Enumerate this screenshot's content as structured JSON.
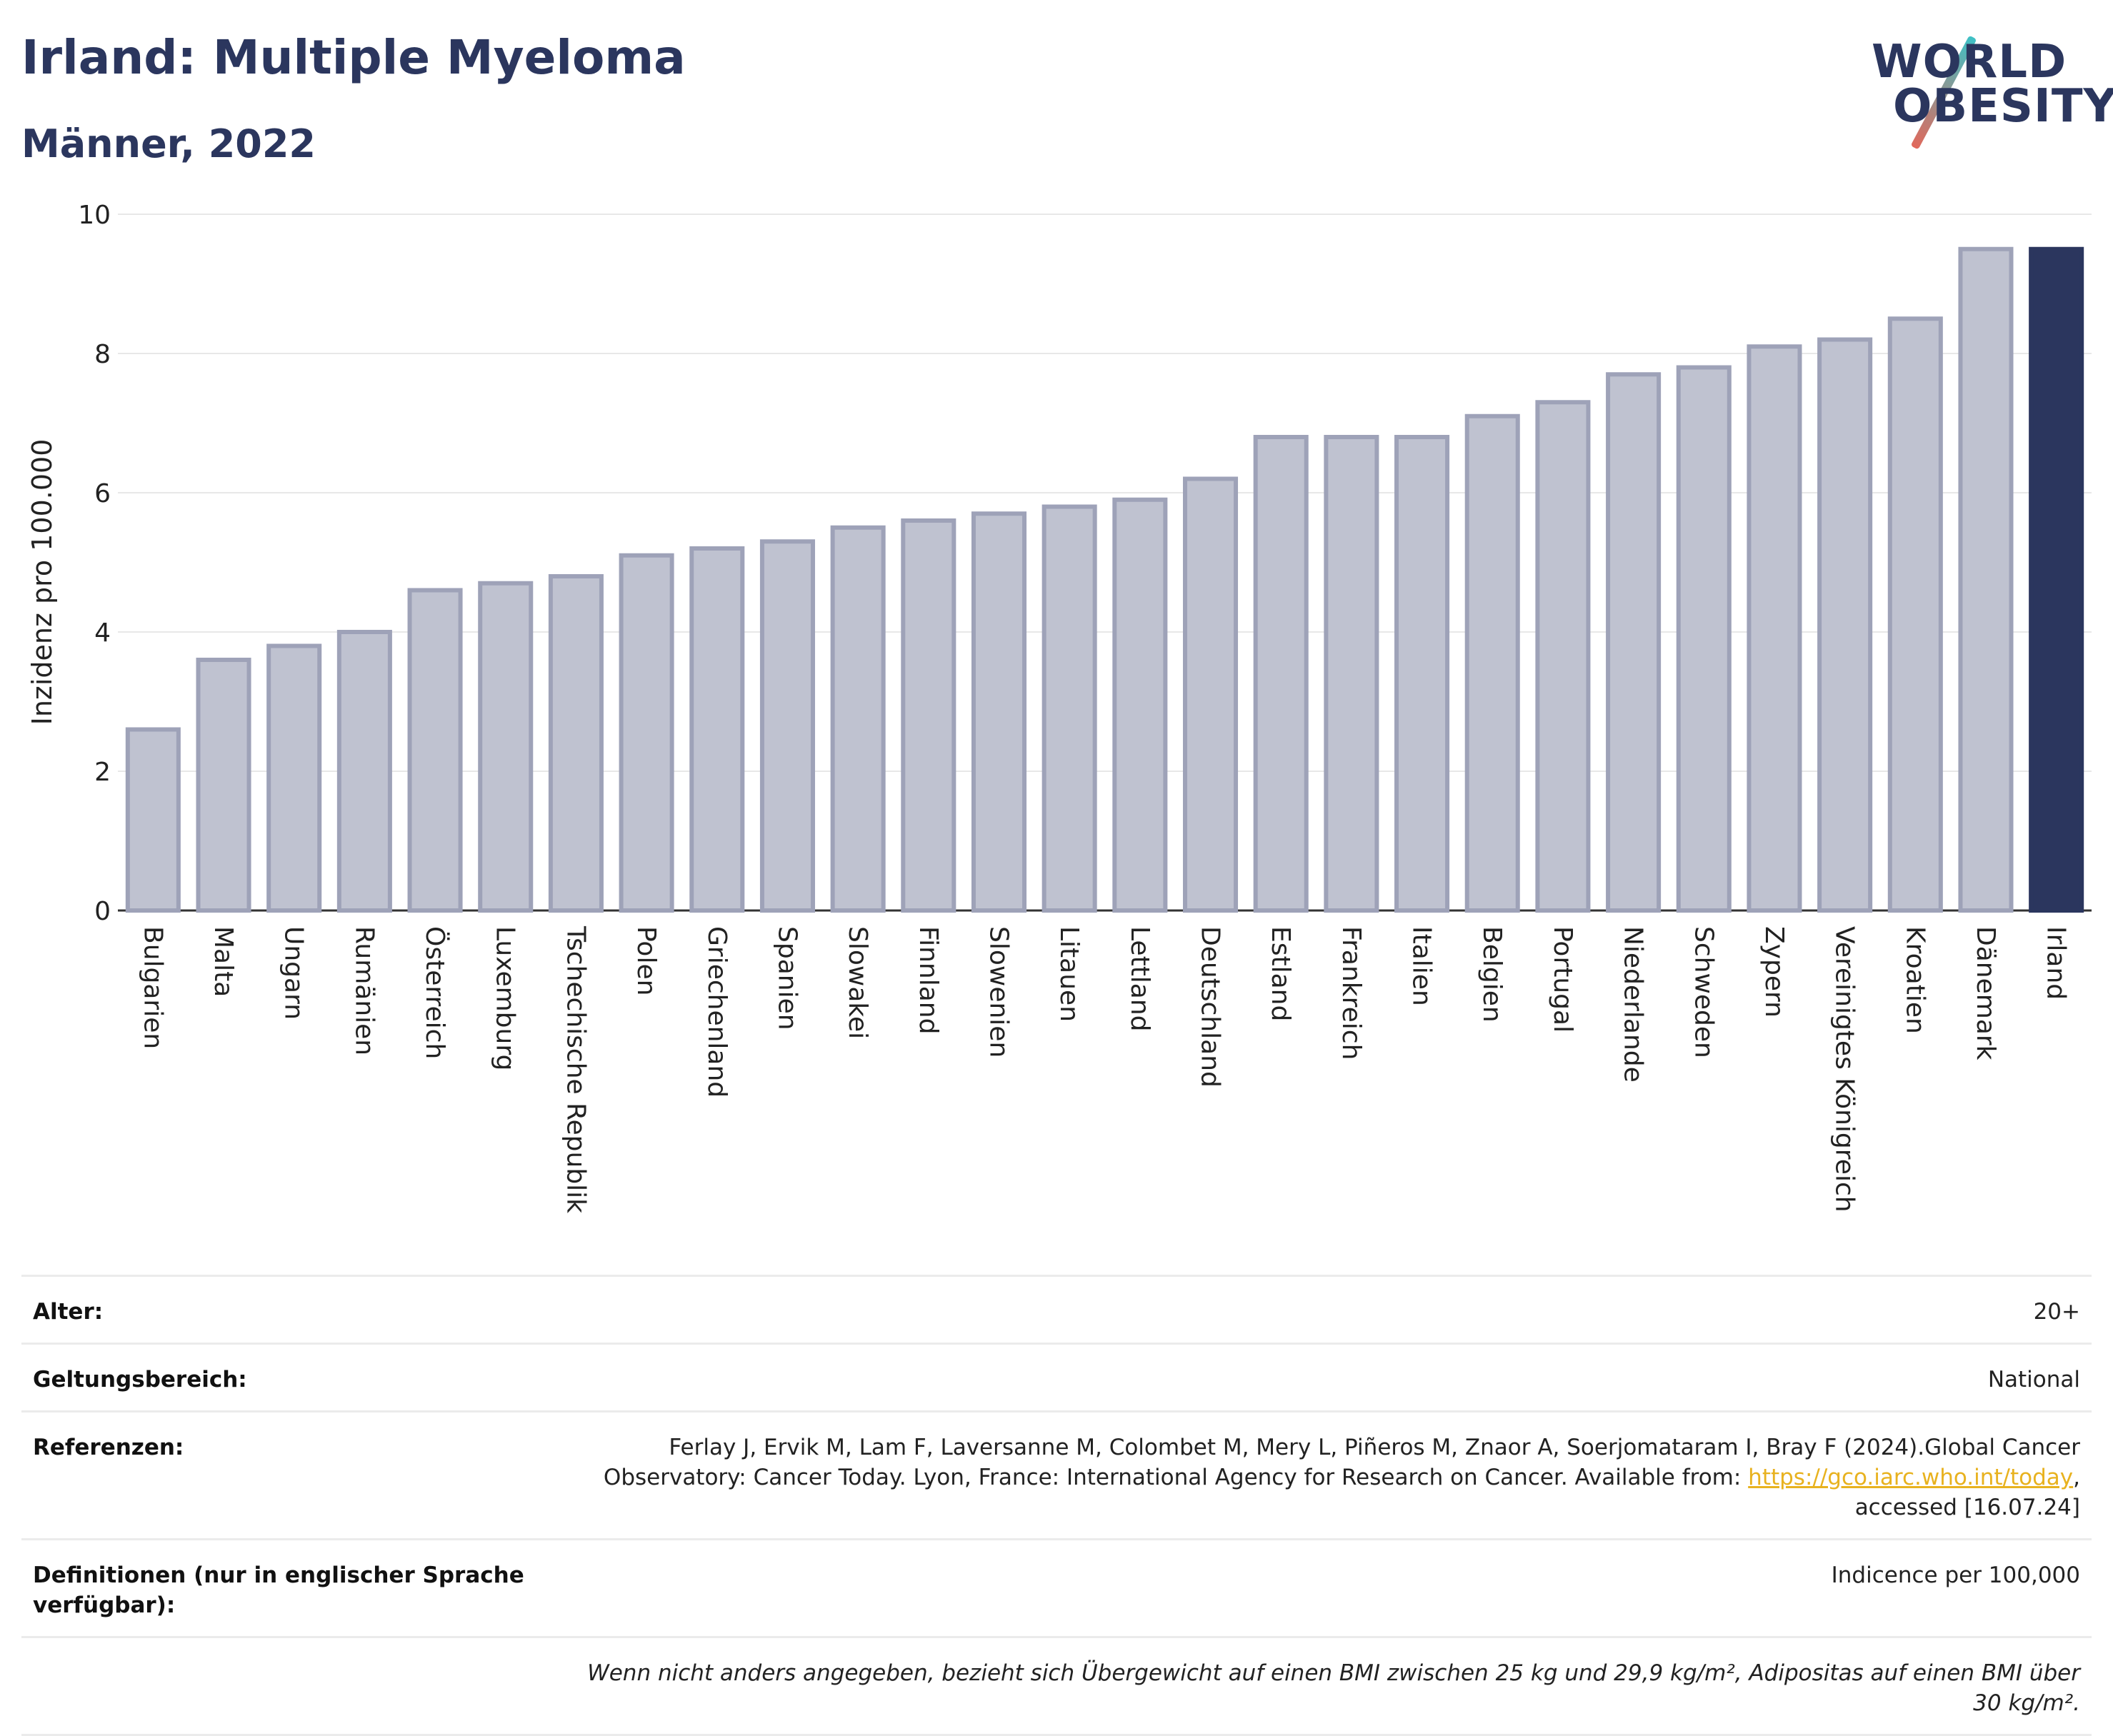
{
  "title": "Irland: Multiple Myeloma",
  "subtitle": "Männer, 2022",
  "logo": {
    "line1": "WORLD",
    "line2": "OBESITY"
  },
  "chart_data": {
    "type": "bar",
    "ylabel": "Inzidenz pro 100.000",
    "xlabel": "",
    "ylim": [
      0,
      10
    ],
    "yticks": [
      0,
      2,
      4,
      6,
      8,
      10
    ],
    "categories": [
      "Bulgarien",
      "Malta",
      "Ungarn",
      "Rumänien",
      "Österreich",
      "Luxemburg",
      "Tschechische Republik",
      "Polen",
      "Griechenland",
      "Spanien",
      "Slowakei",
      "Finnland",
      "Slowenien",
      "Litauen",
      "Lettland",
      "Deutschland",
      "Estland",
      "Frankreich",
      "Italien",
      "Belgien",
      "Portugal",
      "Niederlande",
      "Schweden",
      "Zypern",
      "Vereinigtes Königreich",
      "Kroatien",
      "Dänemark",
      "Irland"
    ],
    "values": [
      2.6,
      3.6,
      3.8,
      4.0,
      4.6,
      4.7,
      4.8,
      5.1,
      5.2,
      5.3,
      5.5,
      5.6,
      5.7,
      5.8,
      5.9,
      6.2,
      6.8,
      6.8,
      6.8,
      7.1,
      7.3,
      7.7,
      7.8,
      8.1,
      8.2,
      8.5,
      9.5,
      9.5
    ],
    "highlight": "Irland",
    "colors": {
      "bar": "#bfc2d0",
      "bar_border": "#9ea2b8",
      "highlight": "#2b365e",
      "grid": "#e8e8e8"
    }
  },
  "info": {
    "age_label": "Alter:",
    "age_value": "20+",
    "scope_label": "Geltungsbereich:",
    "scope_value": "National",
    "ref_label": "Referenzen:",
    "ref_text1": "Ferlay J, Ervik M, Lam F, Laversanne M, Colombet M, Mery L, Piñeros M, Znaor A, Soerjomataram I, Bray F (2024).Global Cancer",
    "ref_text2": "Observatory: Cancer Today. Lyon, France: International Agency for Research on Cancer. Available from: ",
    "ref_link": "https://gco.iarc.who.int/today",
    "ref_text3": ",",
    "ref_text4": "accessed [16.07.24]",
    "def_label": "Definitionen (nur in englischer Sprache verfügbar):",
    "def_value": "Indicence per 100,000",
    "footnote": "Wenn nicht anders angegeben, bezieht sich Übergewicht auf einen BMI zwischen 25 kg und 29,9 kg/m², Adipositas auf einen BMI über 30 kg/m²."
  }
}
